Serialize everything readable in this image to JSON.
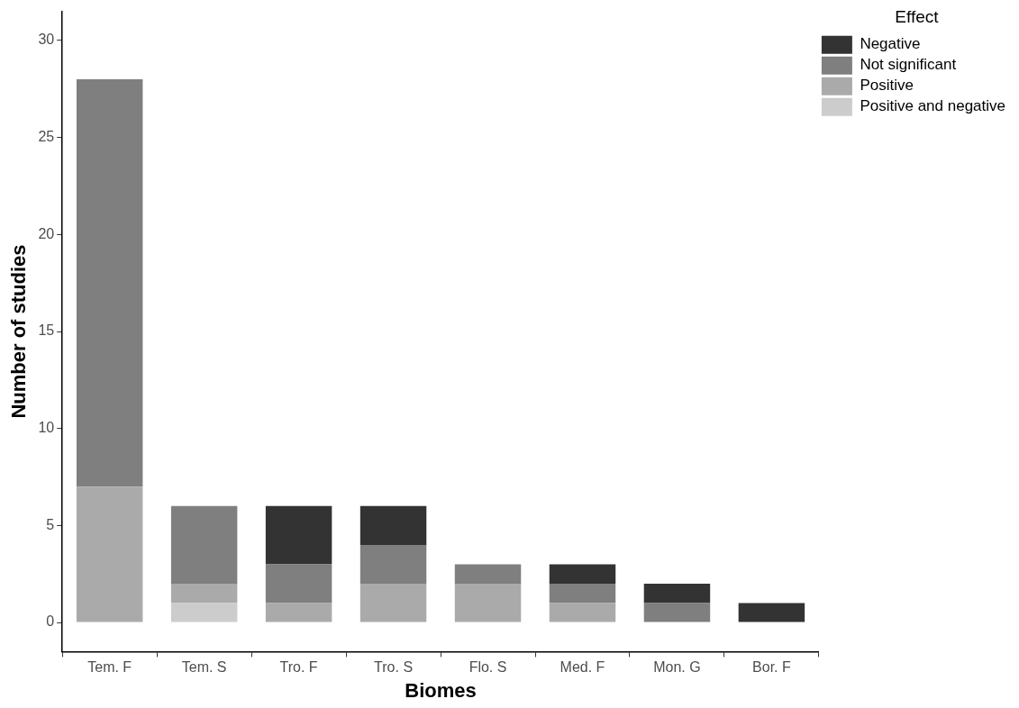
{
  "chart_data": {
    "type": "bar",
    "xlabel": "Biomes",
    "ylabel": "Number of studies",
    "legend_title": "Effect",
    "categories": [
      "Tem. F",
      "Tem. S",
      "Tro. F",
      "Tro. S",
      "Flo. S",
      "Med. F",
      "Mon. G",
      "Bor. F"
    ],
    "series": [
      {
        "name": "Positive and negative",
        "color": "#cccccc",
        "values": [
          0,
          1,
          0,
          0,
          0,
          0,
          0,
          0
        ]
      },
      {
        "name": "Positive",
        "color": "#aaaaaa",
        "values": [
          7,
          1,
          1,
          2,
          2,
          1,
          0,
          0
        ]
      },
      {
        "name": "Not significant",
        "color": "#7f7f7f",
        "values": [
          21,
          4,
          2,
          2,
          1,
          1,
          1,
          0
        ]
      },
      {
        "name": "Negative",
        "color": "#333333",
        "values": [
          0,
          0,
          3,
          2,
          0,
          1,
          1,
          1
        ]
      }
    ],
    "stacked": true,
    "ylim": [
      -1.5,
      31.5
    ],
    "yticks": [
      0,
      5,
      10,
      15,
      20,
      25,
      30
    ],
    "grid": false,
    "legend": "top right"
  }
}
